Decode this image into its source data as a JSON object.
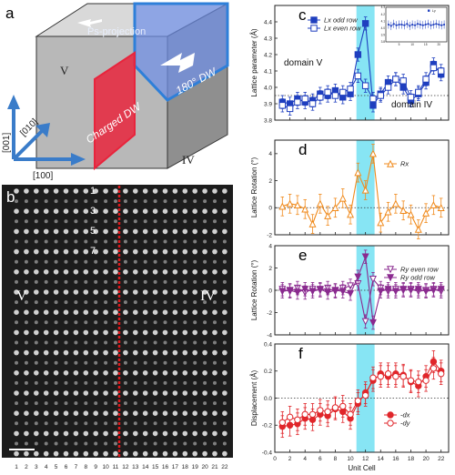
{
  "panel_labels": {
    "a": "a",
    "b": "b",
    "c": "c",
    "d": "d",
    "e": "e",
    "f": "f"
  },
  "schematic": {
    "ps_projection": "Ps-projection",
    "domain_left": "V",
    "domain_right": "IV",
    "charged_dw": "Charged DW",
    "dw180": "180° DW",
    "axis_001": "[001]",
    "axis_010": "[010]",
    "axis_100": "[100]",
    "colors": {
      "charged": "#e8243c",
      "dw180": "#2e7fd9",
      "axis": "#3a7cc9"
    }
  },
  "stem": {
    "row_numbers": [
      "1",
      "3",
      "5",
      "7"
    ],
    "domain_left": "V",
    "domain_right": "IV",
    "column_numbers": [
      "1",
      "2",
      "3",
      "4",
      "5",
      "6",
      "7",
      "8",
      "9",
      "10",
      "11",
      "12",
      "13",
      "14",
      "15",
      "16",
      "17",
      "18",
      "19",
      "20",
      "21",
      "22"
    ],
    "wall_color": "#e0191c"
  },
  "highlight_color": "#5fdcf0",
  "chart_data": [
    {
      "panel": "c",
      "type": "line",
      "ylabel": "Lattice parameter (Å)",
      "xlim": [
        0,
        23
      ],
      "ylim": [
        3.8,
        4.5
      ],
      "yticks": [
        "3.8",
        "3.9",
        "4.0",
        "4.1",
        "4.2",
        "4.3",
        "4.4"
      ],
      "highlight_x": [
        10.8,
        13.2
      ],
      "reference_y": 3.95,
      "annotations": [
        "domain V",
        "domain IV"
      ],
      "x": [
        1,
        2,
        3,
        4,
        5,
        6,
        7,
        8,
        9,
        10,
        11,
        12,
        13,
        14,
        15,
        16,
        17,
        18,
        19,
        20,
        21,
        22
      ],
      "series": [
        {
          "name": "Lx odd row",
          "color": "#1f3fbf",
          "marker": "filled-square",
          "values": [
            3.91,
            3.9,
            3.93,
            3.91,
            3.92,
            3.96,
            3.95,
            3.98,
            3.94,
            3.96,
            4.2,
            4.39,
            3.89,
            3.96,
            4.03,
            4.05,
            4.0,
            3.92,
            3.96,
            4.03,
            4.14,
            4.08
          ],
          "error": 0.04
        },
        {
          "name": "Lx even row",
          "color": "#1f3fbf",
          "marker": "open-square",
          "values": [
            3.89,
            3.87,
            3.91,
            3.93,
            3.9,
            3.94,
            3.97,
            3.95,
            3.97,
            3.99,
            4.07,
            4.01,
            3.93,
            3.95,
            4.0,
            4.05,
            4.04,
            3.94,
            3.97,
            4.05,
            4.12,
            4.1
          ],
          "error": 0.04
        }
      ],
      "inset": {
        "ylim": [
          3.8,
          4.3
        ],
        "yticks": [
          "3.8",
          "3.9",
          "4.0",
          "4.1",
          "4.2",
          "4.3"
        ],
        "xticks": [
          "5",
          "10",
          "15",
          "20"
        ],
        "legend": "Ly",
        "values": [
          4.05,
          4.03,
          4.06,
          4.04,
          4.05,
          4.05,
          4.04,
          4.06,
          4.03,
          4.05,
          4.04,
          4.06,
          4.05,
          4.04,
          4.05,
          4.06,
          4.04,
          4.05,
          4.06,
          4.05,
          4.04,
          4.05
        ]
      }
    },
    {
      "panel": "d",
      "type": "line",
      "ylabel": "Lattice Rotation (°)",
      "xlim": [
        0,
        23
      ],
      "ylim": [
        -2,
        5
      ],
      "yticks": [
        "-2",
        "0",
        "2",
        "4"
      ],
      "highlight_x": [
        10.8,
        13.2
      ],
      "reference_y": 0,
      "x": [
        1,
        2,
        3,
        4,
        5,
        6,
        7,
        8,
        9,
        10,
        11,
        12,
        13,
        14,
        15,
        16,
        17,
        18,
        19,
        20,
        21,
        22
      ],
      "series": [
        {
          "name": "Rx",
          "color": "#f08a1c",
          "marker": "open-triangle",
          "values": [
            0.1,
            0.3,
            0.2,
            -0.1,
            -1.2,
            0.3,
            -0.6,
            0.0,
            0.7,
            -0.5,
            2.6,
            1.3,
            4.0,
            -1.1,
            -0.3,
            0.3,
            -0.2,
            -0.5,
            -1.6,
            -0.4,
            0.2,
            0.0
          ],
          "error": 0.7
        }
      ]
    },
    {
      "panel": "e",
      "type": "line",
      "ylabel": "Lattice Rotation (°)",
      "xlim": [
        0,
        23
      ],
      "ylim": [
        -4,
        4
      ],
      "yticks": [
        "-4",
        "-2",
        "0",
        "2",
        "4"
      ],
      "highlight_x": [
        10.8,
        13.2
      ],
      "reference_y": 0,
      "x": [
        1,
        2,
        3,
        4,
        5,
        6,
        7,
        8,
        9,
        10,
        11,
        12,
        13,
        14,
        15,
        16,
        17,
        18,
        19,
        20,
        21,
        22
      ],
      "series": [
        {
          "name": "Ry even row",
          "color": "#8a2a8f",
          "marker": "open-triangle-down",
          "values": [
            0.1,
            -0.1,
            0.2,
            -0.2,
            0.1,
            0.0,
            0.2,
            -0.1,
            0.2,
            0.4,
            0.6,
            -2.8,
            1.0,
            0.2,
            -0.1,
            0.1,
            0.0,
            0.1,
            -0.1,
            0.0,
            0.1,
            -0.1
          ],
          "error": 0.6
        },
        {
          "name": "Ry odd row",
          "color": "#8a2a8f",
          "marker": "filled-triangle-down",
          "values": [
            -0.1,
            0.0,
            -0.2,
            0.1,
            -0.1,
            0.1,
            -0.2,
            0.0,
            -0.1,
            -0.3,
            1.2,
            3.0,
            -2.9,
            -0.1,
            0.1,
            -0.1,
            0.1,
            0.0,
            0.1,
            -0.1,
            0.0,
            0.1
          ],
          "error": 0.6
        }
      ]
    },
    {
      "panel": "f",
      "type": "line",
      "ylabel": "Displacement (Å)",
      "xlabel": "Unit Cell",
      "xlim": [
        0,
        23
      ],
      "ylim": [
        -0.4,
        0.4
      ],
      "yticks": [
        "-0.4",
        "-0.2",
        "0.0",
        "0.2",
        "0.4"
      ],
      "xticks": [
        "0",
        "2",
        "4",
        "6",
        "8",
        "10",
        "12",
        "14",
        "16",
        "18",
        "20",
        "22"
      ],
      "highlight_x": [
        10.8,
        13.2
      ],
      "reference_y": 0,
      "x": [
        1,
        2,
        3,
        4,
        5,
        6,
        7,
        8,
        9,
        10,
        11,
        12,
        13,
        14,
        15,
        16,
        17,
        18,
        19,
        20,
        21,
        22
      ],
      "series": [
        {
          "name": "-dx",
          "color": "#e0262b",
          "marker": "filled-circle",
          "values": [
            -0.21,
            -0.2,
            -0.19,
            -0.15,
            -0.16,
            -0.12,
            -0.13,
            -0.08,
            -0.1,
            -0.15,
            -0.04,
            0.04,
            0.13,
            0.18,
            0.16,
            0.18,
            0.17,
            0.12,
            0.09,
            0.16,
            0.27,
            0.2
          ],
          "error": 0.08
        },
        {
          "name": "-dy",
          "color": "#e0262b",
          "marker": "open-circle",
          "values": [
            -0.18,
            -0.14,
            -0.16,
            -0.12,
            -0.12,
            -0.09,
            -0.1,
            -0.07,
            -0.06,
            -0.12,
            -0.02,
            0.02,
            0.15,
            0.16,
            0.18,
            0.16,
            0.16,
            0.13,
            0.12,
            0.13,
            0.22,
            0.18
          ],
          "error": 0.08
        }
      ]
    }
  ]
}
